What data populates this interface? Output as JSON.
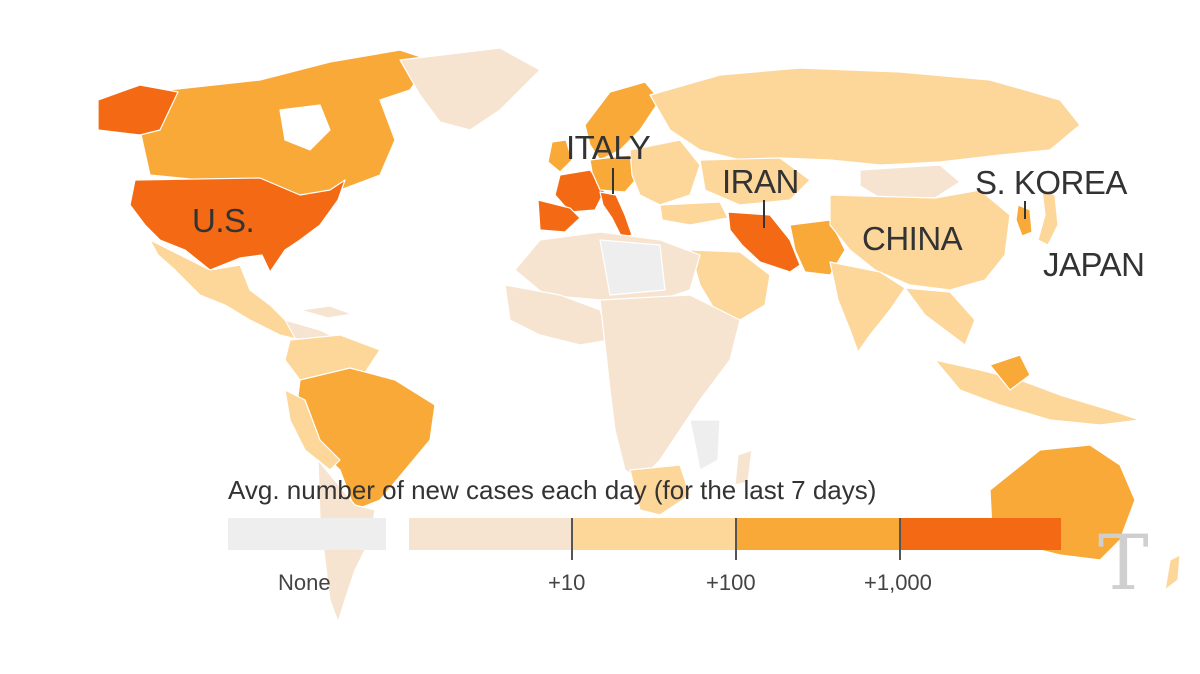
{
  "map": {
    "labels": {
      "us": "U.S.",
      "italy": "ITALY",
      "iran": "IRAN",
      "skorea": "S. KOREA",
      "china": "CHINA",
      "japan": "JAPAN"
    }
  },
  "legend": {
    "title": "Avg. number of new cases each day (for the last 7 days)",
    "none_label": "None",
    "tick_labels": [
      "+10",
      "+100",
      "+1,000"
    ],
    "colors": {
      "none": "#eeeeee",
      "bin1": "#f6e4d0",
      "bin2": "#fdd69a",
      "bin3": "#f9a938",
      "bin4": "#f46a14"
    }
  },
  "branding": {
    "logo_glyph": "T"
  }
}
